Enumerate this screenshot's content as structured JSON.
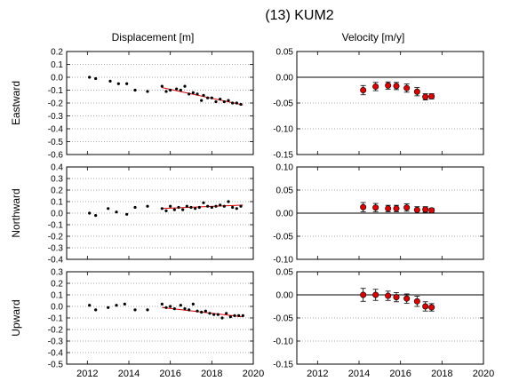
{
  "figure": {
    "title": "(13) KUM2",
    "col_titles": [
      "Displacement [m]",
      "Velocity [m/y]"
    ],
    "row_labels": [
      "Eastward",
      "Northward",
      "Upward"
    ]
  },
  "colors": {
    "fit_line": "#e00000",
    "velocity_marker": "#e00000",
    "point": "#000000",
    "grid": "#555555"
  },
  "chart_data": [
    {
      "type": "scatter",
      "panel": "eastward-displacement",
      "ylabel": "Eastward",
      "xlim": [
        2011,
        2020
      ],
      "ylim": [
        -0.6,
        0.2
      ],
      "xticks": [
        2012,
        2014,
        2016,
        2018,
        2020
      ],
      "show_xticklabels": false,
      "yticks": [
        -0.6,
        -0.5,
        -0.4,
        -0.3,
        -0.2,
        -0.1,
        0.0,
        0.1,
        0.2
      ],
      "ytick_labels": [
        "-0.6",
        "-0.5",
        "-0.4",
        "-0.3",
        "-0.2",
        "-0.1",
        "0.0",
        "0.1",
        "0.2"
      ],
      "grid": "horizontal-dotted",
      "points": [
        [
          2012.1,
          0.0
        ],
        [
          2012.4,
          -0.01
        ],
        [
          2013.1,
          -0.03
        ],
        [
          2013.5,
          -0.05
        ],
        [
          2013.9,
          -0.05
        ],
        [
          2014.3,
          -0.1
        ],
        [
          2014.9,
          -0.11
        ],
        [
          2015.6,
          -0.07
        ],
        [
          2015.8,
          -0.11
        ],
        [
          2016.0,
          -0.1
        ],
        [
          2016.3,
          -0.09
        ],
        [
          2016.5,
          -0.1
        ],
        [
          2016.7,
          -0.07
        ],
        [
          2016.9,
          -0.13
        ],
        [
          2017.1,
          -0.12
        ],
        [
          2017.3,
          -0.13
        ],
        [
          2017.5,
          -0.18
        ],
        [
          2017.6,
          -0.14
        ],
        [
          2017.8,
          -0.16
        ],
        [
          2018.0,
          -0.16
        ],
        [
          2018.2,
          -0.19
        ],
        [
          2018.4,
          -0.17
        ],
        [
          2018.6,
          -0.19
        ],
        [
          2018.8,
          -0.18
        ],
        [
          2019.0,
          -0.2
        ],
        [
          2019.2,
          -0.2
        ],
        [
          2019.4,
          -0.21
        ]
      ],
      "fit_line": [
        [
          2015.6,
          -0.08
        ],
        [
          2019.5,
          -0.215
        ]
      ]
    },
    {
      "type": "scatter",
      "panel": "eastward-velocity",
      "xlim": [
        2011,
        2020
      ],
      "ylim": [
        -0.15,
        0.05
      ],
      "xticks": [
        2012,
        2014,
        2016,
        2018,
        2020
      ],
      "show_xticklabels": false,
      "yticks": [
        -0.15,
        -0.1,
        -0.05,
        0.0,
        0.05
      ],
      "ytick_labels": [
        "-0.15",
        "-0.10",
        "-0.05",
        "0.00",
        "0.05"
      ],
      "grid": "horizontal-dotted",
      "zero_line": true,
      "points": [
        [
          2014.2,
          -0.025,
          0.009
        ],
        [
          2014.8,
          -0.018,
          0.008
        ],
        [
          2015.4,
          -0.016,
          0.007
        ],
        [
          2015.8,
          -0.017,
          0.007
        ],
        [
          2016.3,
          -0.021,
          0.008
        ],
        [
          2016.8,
          -0.028,
          0.008
        ],
        [
          2017.2,
          -0.038,
          0.006
        ],
        [
          2017.5,
          -0.037,
          0.005
        ]
      ]
    },
    {
      "type": "scatter",
      "panel": "northward-displacement",
      "ylabel": "Northward",
      "xlim": [
        2011,
        2020
      ],
      "ylim": [
        -0.4,
        0.4
      ],
      "xticks": [
        2012,
        2014,
        2016,
        2018,
        2020
      ],
      "show_xticklabels": false,
      "yticks": [
        -0.4,
        -0.3,
        -0.2,
        -0.1,
        0.0,
        0.1,
        0.2,
        0.3,
        0.4
      ],
      "ytick_labels": [
        "-0.4",
        "-0.3",
        "-0.2",
        "-0.1",
        "0.0",
        "0.1",
        "0.2",
        "0.3",
        "0.4"
      ],
      "grid": "horizontal-dotted",
      "points": [
        [
          2012.1,
          0.0
        ],
        [
          2012.4,
          -0.02
        ],
        [
          2013.0,
          0.04
        ],
        [
          2013.4,
          0.01
        ],
        [
          2013.9,
          -0.01
        ],
        [
          2014.3,
          0.05
        ],
        [
          2014.9,
          0.06
        ],
        [
          2015.6,
          0.04
        ],
        [
          2015.8,
          0.02
        ],
        [
          2016.0,
          0.06
        ],
        [
          2016.2,
          0.03
        ],
        [
          2016.4,
          0.05
        ],
        [
          2016.6,
          0.03
        ],
        [
          2016.8,
          0.06
        ],
        [
          2017.0,
          0.05
        ],
        [
          2017.2,
          0.04
        ],
        [
          2017.4,
          0.05
        ],
        [
          2017.6,
          0.09
        ],
        [
          2017.8,
          0.06
        ],
        [
          2018.0,
          0.05
        ],
        [
          2018.2,
          0.06
        ],
        [
          2018.4,
          0.07
        ],
        [
          2018.6,
          0.06
        ],
        [
          2018.8,
          0.1
        ],
        [
          2019.0,
          0.05
        ],
        [
          2019.2,
          0.04
        ],
        [
          2019.4,
          0.06
        ]
      ],
      "fit_line": [
        [
          2015.6,
          0.04
        ],
        [
          2019.5,
          0.07
        ]
      ]
    },
    {
      "type": "scatter",
      "panel": "northward-velocity",
      "xlim": [
        2011,
        2020
      ],
      "ylim": [
        -0.1,
        0.1
      ],
      "xticks": [
        2012,
        2014,
        2016,
        2018,
        2020
      ],
      "show_xticklabels": false,
      "yticks": [
        -0.1,
        -0.05,
        0.0,
        0.05,
        0.1
      ],
      "ytick_labels": [
        "-0.10",
        "-0.05",
        "0.00",
        "0.05",
        "0.10"
      ],
      "grid": "horizontal-dotted",
      "zero_line": true,
      "points": [
        [
          2014.2,
          0.013,
          0.01
        ],
        [
          2014.8,
          0.012,
          0.009
        ],
        [
          2015.4,
          0.01,
          0.007
        ],
        [
          2015.8,
          0.01,
          0.007
        ],
        [
          2016.3,
          0.012,
          0.008
        ],
        [
          2016.8,
          0.007,
          0.007
        ],
        [
          2017.2,
          0.008,
          0.006
        ],
        [
          2017.5,
          0.006,
          0.005
        ]
      ]
    },
    {
      "type": "scatter",
      "panel": "upward-displacement",
      "ylabel": "Upward",
      "xlim": [
        2011,
        2020
      ],
      "ylim": [
        -0.5,
        0.3
      ],
      "xticks": [
        2012,
        2014,
        2016,
        2018,
        2020
      ],
      "show_xticklabels": true,
      "yticks": [
        -0.5,
        -0.4,
        -0.3,
        -0.2,
        -0.1,
        0.0,
        0.1,
        0.2,
        0.3
      ],
      "ytick_labels": [
        "-0.5",
        "-0.4",
        "-0.3",
        "-0.2",
        "-0.1",
        "0.0",
        "0.1",
        "0.2",
        "0.3"
      ],
      "grid": "horizontal-dotted",
      "points": [
        [
          2012.1,
          0.01
        ],
        [
          2012.4,
          -0.03
        ],
        [
          2013.0,
          -0.01
        ],
        [
          2013.4,
          0.01
        ],
        [
          2013.8,
          0.02
        ],
        [
          2014.3,
          -0.03
        ],
        [
          2014.9,
          -0.03
        ],
        [
          2015.6,
          0.02
        ],
        [
          2015.8,
          -0.01
        ],
        [
          2016.0,
          0.0
        ],
        [
          2016.2,
          -0.02
        ],
        [
          2016.5,
          0.01
        ],
        [
          2016.7,
          -0.02
        ],
        [
          2016.9,
          -0.03
        ],
        [
          2017.1,
          0.02
        ],
        [
          2017.3,
          -0.04
        ],
        [
          2017.5,
          -0.05
        ],
        [
          2017.7,
          -0.04
        ],
        [
          2017.9,
          -0.06
        ],
        [
          2018.1,
          -0.07
        ],
        [
          2018.3,
          -0.07
        ],
        [
          2018.5,
          -0.1
        ],
        [
          2018.7,
          -0.06
        ],
        [
          2018.9,
          -0.09
        ],
        [
          2019.1,
          -0.08
        ],
        [
          2019.3,
          -0.08
        ],
        [
          2019.5,
          -0.08
        ]
      ],
      "fit_line": [
        [
          2015.6,
          -0.01
        ],
        [
          2019.5,
          -0.09
        ]
      ]
    },
    {
      "type": "scatter",
      "panel": "upward-velocity",
      "xlim": [
        2011,
        2020
      ],
      "ylim": [
        -0.15,
        0.05
      ],
      "xticks": [
        2012,
        2014,
        2016,
        2018,
        2020
      ],
      "show_xticklabels": true,
      "yticks": [
        -0.15,
        -0.1,
        -0.05,
        0.0,
        0.05
      ],
      "ytick_labels": [
        "-0.15",
        "-0.10",
        "-0.05",
        "0.00",
        "0.05"
      ],
      "grid": "horizontal-dotted",
      "zero_line": true,
      "points": [
        [
          2014.2,
          0.0,
          0.014
        ],
        [
          2014.8,
          0.0,
          0.012
        ],
        [
          2015.4,
          -0.002,
          0.01
        ],
        [
          2015.8,
          -0.005,
          0.01
        ],
        [
          2016.3,
          -0.008,
          0.01
        ],
        [
          2016.8,
          -0.014,
          0.011
        ],
        [
          2017.2,
          -0.025,
          0.01
        ],
        [
          2017.5,
          -0.027,
          0.008
        ]
      ]
    }
  ]
}
